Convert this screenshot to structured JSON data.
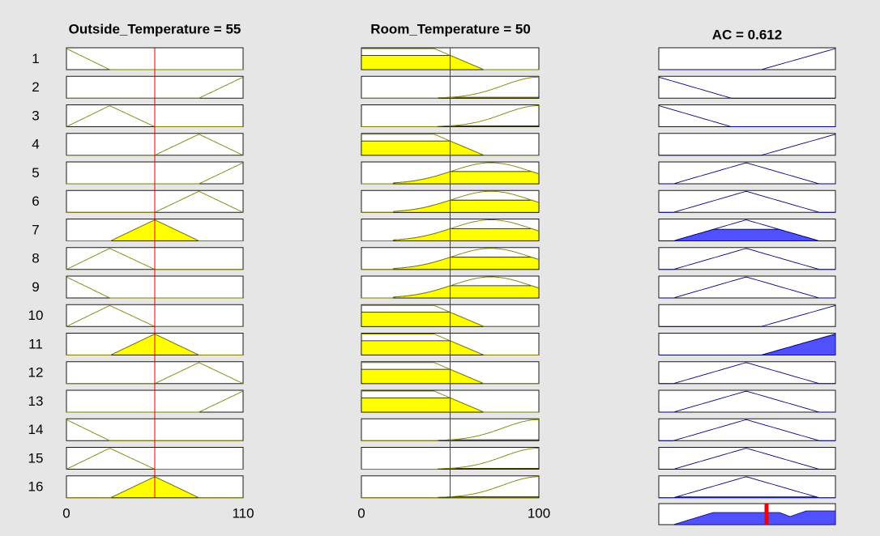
{
  "inputs": [
    {
      "title": "Outside_Temperature = 55",
      "axis_min": 0,
      "axis_max": 110
    },
    {
      "title": "Room_Temperature = 50",
      "axis_min": 0,
      "axis_max": 100
    }
  ],
  "output": {
    "title": "AC = 0.612"
  },
  "rules": [
    "1",
    "2",
    "3",
    "4",
    "5",
    "6",
    "7",
    "8",
    "9",
    "10",
    "11",
    "12",
    "13",
    "14",
    "15",
    "16"
  ]
}
